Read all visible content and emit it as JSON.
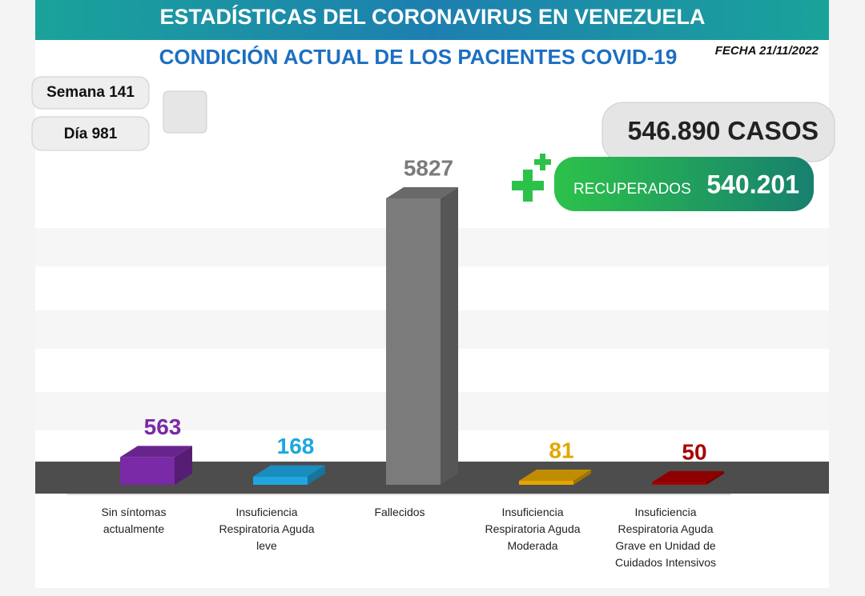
{
  "header": {
    "title": "ESTADÍSTICAS DEL CORONAVIRUS EN VENEZUELA",
    "subtitle": "CONDICIÓN ACTUAL DE LOS PACIENTES COVID-19",
    "date": "FECHA 21/11/2022",
    "week": "Semana 141",
    "day": "Día 981",
    "cases": "546.890 CASOS",
    "recovered_label": "RECUPERADOS",
    "recovered": "540.201"
  },
  "chart_data": {
    "type": "bar",
    "categories": [
      "Sin síntomas actualmente",
      "Insuficiencia Respiratoria Aguda leve",
      "Fallecidos",
      "Insuficiencia Respiratoria Aguda Moderada",
      "Insuficiencia Respiratoria Aguda Grave en Unidad de Cuidados Intensivos"
    ],
    "values": [
      563,
      168,
      5827,
      81,
      50
    ],
    "colors": [
      "#7a2aa6",
      "#1fa6e0",
      "#7b7b7b",
      "#e3a600",
      "#a80000"
    ]
  }
}
